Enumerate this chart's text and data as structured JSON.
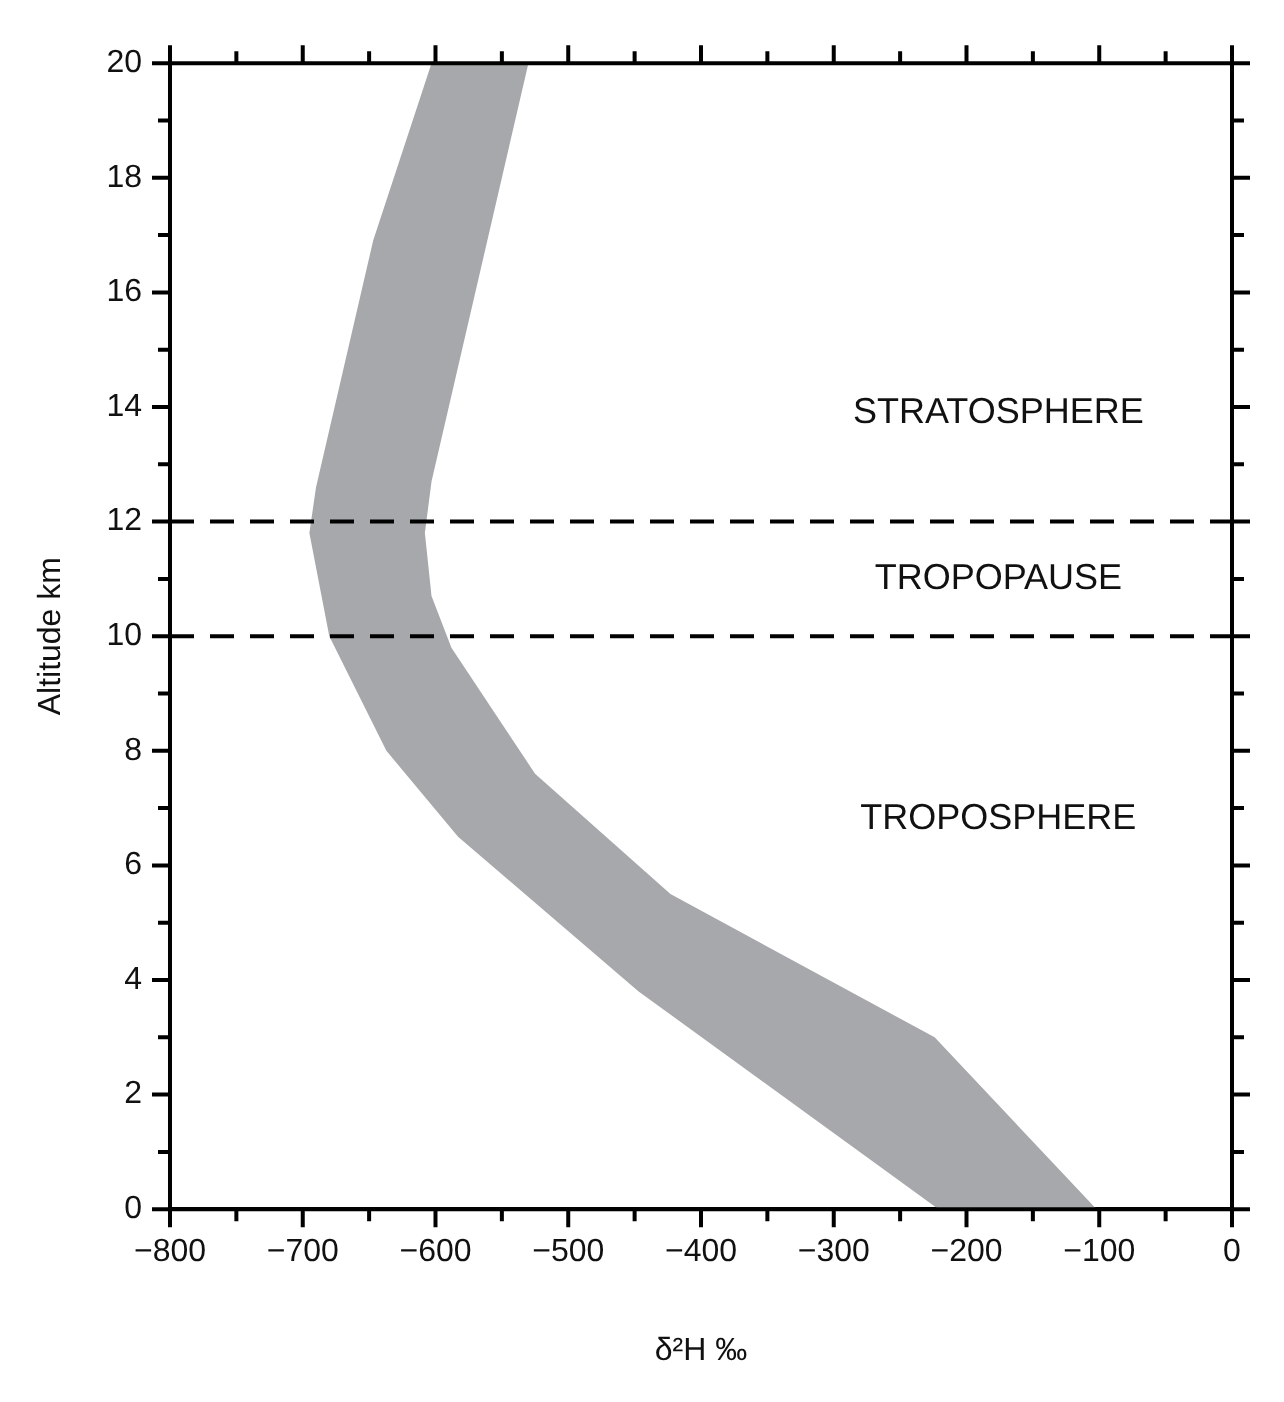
{
  "chart_data": {
    "type": "area",
    "xlabel": "δ²H ‰",
    "ylabel": "Altitude km",
    "series": [
      {
        "color": "#a7a8ab",
        "x": [
          -221,
          -447,
          -583,
          -637,
          -680,
          -695,
          -690,
          -647,
          -603,
          -530,
          -603,
          -608,
          -603,
          -588,
          -525,
          -423,
          -224,
          -102
        ],
        "values": [
          0,
          3.8,
          6.5,
          8,
          10,
          11.8,
          12.6,
          16.9,
          20,
          20,
          12.7,
          11.8,
          10.7,
          9.8,
          7.6,
          5.5,
          3,
          0
        ]
      }
    ],
    "xlim": [
      -800,
      0
    ],
    "ylim": [
      0,
      20
    ],
    "xticks": [
      {
        "value": -800,
        "label": "−800"
      },
      {
        "value": -750,
        "label": null
      },
      {
        "value": -700,
        "label": "−700"
      },
      {
        "value": -650,
        "label": null
      },
      {
        "value": -600,
        "label": "−600"
      },
      {
        "value": -550,
        "label": null
      },
      {
        "value": -500,
        "label": "−500"
      },
      {
        "value": -450,
        "label": null
      },
      {
        "value": -400,
        "label": "−400"
      },
      {
        "value": -350,
        "label": null
      },
      {
        "value": -300,
        "label": "−300"
      },
      {
        "value": -250,
        "label": null
      },
      {
        "value": -200,
        "label": "−200"
      },
      {
        "value": -150,
        "label": null
      },
      {
        "value": -100,
        "label": "−100"
      },
      {
        "value": -50,
        "label": null
      },
      0
    ],
    "yticks": [
      0,
      {
        "value": 1,
        "label": null
      },
      2,
      {
        "value": 3,
        "label": null
      },
      4,
      {
        "value": 5,
        "label": null
      },
      6,
      {
        "value": 7,
        "label": null
      },
      8,
      {
        "value": 9,
        "label": null
      },
      10,
      {
        "value": 11,
        "label": null
      },
      12,
      {
        "value": 13,
        "label": null
      },
      14,
      {
        "value": 15,
        "label": null
      },
      16,
      {
        "value": 17,
        "label": null
      },
      18,
      {
        "value": 19,
        "label": null
      },
      20
    ],
    "ref_lines": [
      {
        "axis": "y",
        "value": 10,
        "color": "#000000",
        "line_style": "dashed"
      },
      {
        "axis": "y",
        "value": 12,
        "color": "#000000",
        "line_style": "dashed"
      }
    ],
    "annotations": [
      "STRATOSPHERE",
      "TROPOPAUSE",
      "TROPOSPHERE"
    ],
    "grid": false,
    "legend": false
  }
}
